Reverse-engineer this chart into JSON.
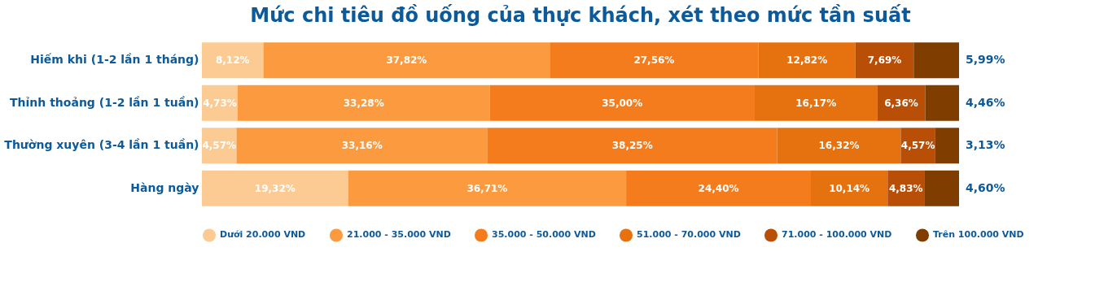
{
  "chart_data": {
    "type": "bar",
    "orientation": "horizontal",
    "stacked": true,
    "title": "Mức chi tiêu đồ uống của thực khách, xét theo mức tần suất",
    "categories": [
      "Hiếm khi (1-2 lần 1 tháng)",
      "Thỉnh thoảng (1-2 lần 1 tuần)",
      "Thường xuyên (3-4 lần 1 tuần)",
      "Hàng ngày"
    ],
    "xlim": [
      0,
      100
    ],
    "legend": "bottom",
    "tick_labels": "y",
    "series": [
      {
        "name": "Dưới 20.000 VND",
        "color": "#fccb93",
        "values": [
          8.12,
          4.73,
          4.57,
          19.32
        ],
        "value_labels": [
          "8,12%",
          "4,73%",
          "4,57%",
          "19,32%"
        ]
      },
      {
        "name": "21.000 - 35.000 VND",
        "color": "#fb9a3f",
        "values": [
          37.82,
          33.28,
          33.16,
          36.71
        ],
        "value_labels": [
          "37,82%",
          "33,28%",
          "33,16%",
          "36,71%"
        ]
      },
      {
        "name": "35.000 - 50.000 VND",
        "color": "#f47c1c",
        "values": [
          27.56,
          35.0,
          38.25,
          24.4
        ],
        "value_labels": [
          "27,56%",
          "35,00%",
          "38,25%",
          "24,40%"
        ]
      },
      {
        "name": "51.000 - 70.000 VND",
        "color": "#e6720f",
        "values": [
          12.82,
          16.17,
          16.32,
          10.14
        ],
        "value_labels": [
          "12,82%",
          "16,17%",
          "16,32%",
          "10,14%"
        ]
      },
      {
        "name": "71.000 - 100.000 VND",
        "color": "#b94e06",
        "values": [
          7.69,
          6.36,
          4.57,
          4.83
        ],
        "value_labels": [
          "7,69%",
          "6,36%",
          "4,57%",
          "4,83%"
        ]
      },
      {
        "name": "Trên 100.000 VND",
        "color": "#7f3e00",
        "values": [
          5.99,
          4.46,
          3.13,
          4.6
        ],
        "value_labels": [
          "5,99%",
          "4,46%",
          "3,13%",
          "4,60%"
        ]
      }
    ]
  }
}
